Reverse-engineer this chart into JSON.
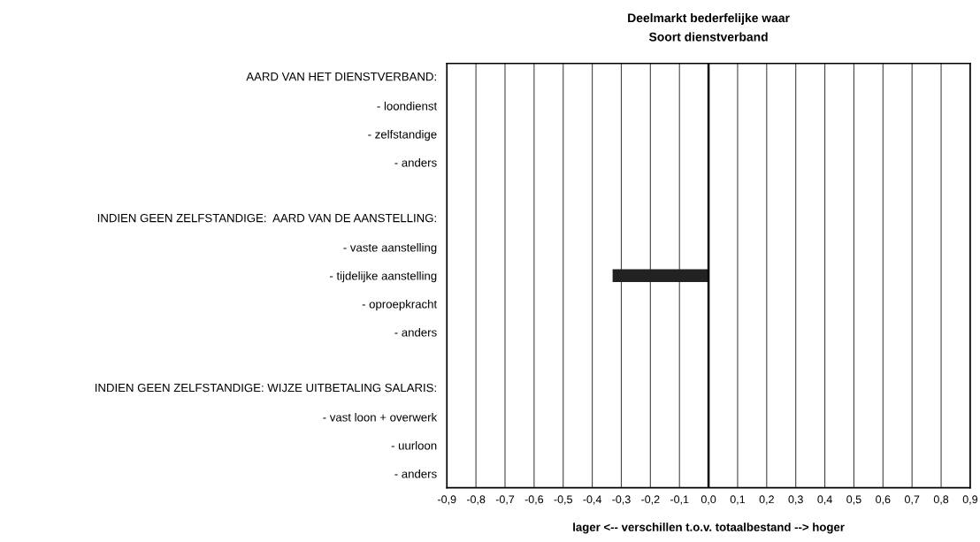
{
  "chart_data": {
    "type": "bar",
    "orientation": "horizontal",
    "title": "Deelmarkt bederfelijke waar",
    "subtitle": "Soort dienstverband",
    "xlabel": "lager <-- verschillen t.o.v. totaalbestand --> hoger",
    "annotations": [
      "AARD VAN HET DIENSTVERBAND:",
      "INDIEN GEEN ZELFSTANDIGE:  AARD VAN DE AANSTELLING:",
      "INDIEN GEEN ZELFSTANDIGE: WIJZE UITBETALING SALARIS:"
    ],
    "categories": [
      null,
      "- loondienst",
      "- zelfstandige",
      "- anders",
      null,
      null,
      "- vaste aanstelling",
      "- tijdelijke aanstelling",
      "- oproepkracht",
      "- anders",
      null,
      null,
      "- vast loon + overwerk",
      "- uurloon",
      "- anders"
    ],
    "values": [
      null,
      0,
      0,
      0,
      null,
      null,
      0,
      -0.33,
      0,
      0,
      null,
      null,
      0,
      0,
      0
    ],
    "color": "#222222",
    "xlim": [
      -0.9,
      0.9
    ],
    "xticks": [
      {
        "value": -0.9,
        "label": "-0,9"
      },
      {
        "value": -0.8,
        "label": "-0,8"
      },
      {
        "value": -0.7,
        "label": "-0,7"
      },
      {
        "value": -0.6,
        "label": "-0,6"
      },
      {
        "value": -0.5,
        "label": "-0,5"
      },
      {
        "value": -0.4,
        "label": "-0,4"
      },
      {
        "value": -0.3,
        "label": "-0,3"
      },
      {
        "value": -0.2,
        "label": "-0,2"
      },
      {
        "value": -0.1,
        "label": "-0,1"
      },
      {
        "value": 0,
        "label": "0,0"
      },
      {
        "value": 0.1,
        "label": "0,1"
      },
      {
        "value": 0.2,
        "label": "0,2"
      },
      {
        "value": 0.3,
        "label": "0,3"
      },
      {
        "value": 0.4,
        "label": "0,4"
      },
      {
        "value": 0.5,
        "label": "0,5"
      },
      {
        "value": 0.6,
        "label": "0,6"
      },
      {
        "value": 0.7,
        "label": "0,7"
      },
      {
        "value": 0.8,
        "label": "0,8"
      },
      {
        "value": 0.9,
        "label": "0,9"
      }
    ],
    "ref_lines": [
      {
        "axis": "x",
        "value": 0,
        "color": "#000000"
      }
    ],
    "grid": "x",
    "legend": false
  }
}
